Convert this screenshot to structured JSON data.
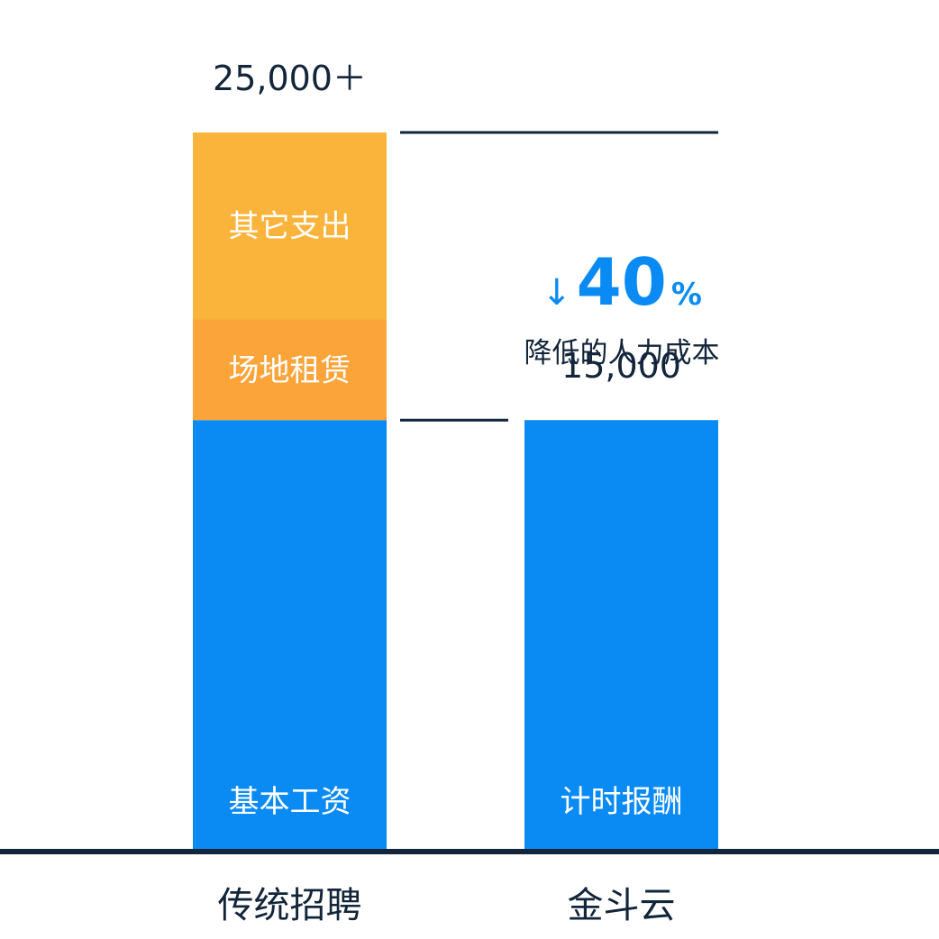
{
  "chart_data": {
    "type": "bar",
    "stacked": true,
    "title": "",
    "xlabel": "",
    "ylabel": "",
    "ylim": [
      0,
      25000
    ],
    "categories": [
      "传统招聘",
      "金斗云"
    ],
    "series": [
      {
        "name": "基本工资",
        "color": "#0A8BF4",
        "values": [
          15000,
          0
        ]
      },
      {
        "name": "场地租赁",
        "color": "#FBA43A",
        "values": [
          3500,
          0
        ]
      },
      {
        "name": "其它支出",
        "color": "#FBB43B",
        "values": [
          6500,
          0
        ]
      },
      {
        "name": "计时报酬",
        "color": "#0A8BF4",
        "values": [
          0,
          15000
        ]
      }
    ],
    "totals": [
      {
        "category": "传统招聘",
        "label": "25,000＋"
      },
      {
        "category": "金斗云",
        "label": "15,000"
      }
    ],
    "annotation": {
      "arrow": "↓",
      "value": "40",
      "unit": "%",
      "text": "降低的人力成本",
      "color": "#0A8BF4"
    },
    "grid": false,
    "legend": "none"
  }
}
